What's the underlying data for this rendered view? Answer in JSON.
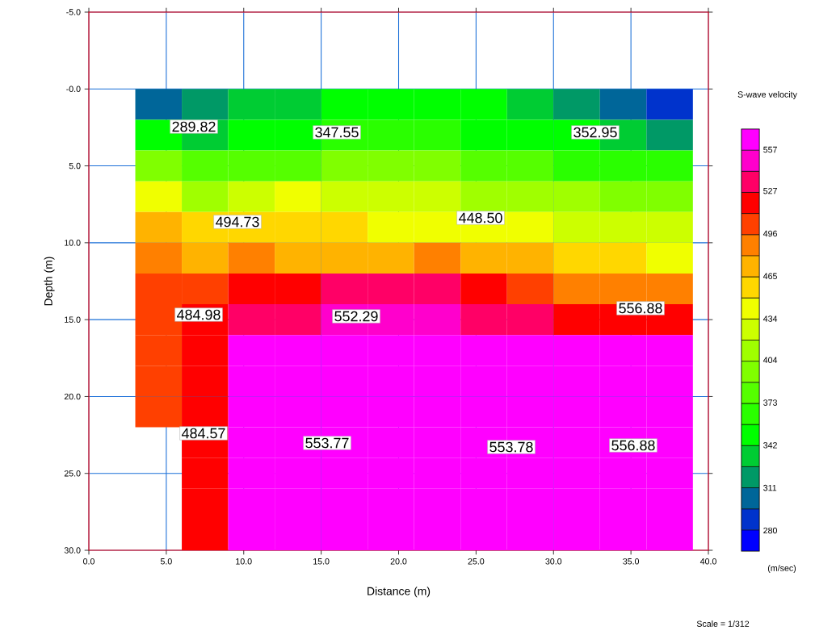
{
  "chart_data": {
    "type": "heatmap",
    "xlabel": "Distance (m)",
    "ylabel": "Depth (m)",
    "clabel": "S-wave velocity",
    "x": [
      4.5,
      7.5,
      10.5,
      13.5,
      16.5,
      19.5,
      22.5,
      25.5,
      28.5,
      31.5,
      34.5,
      37.5
    ],
    "y": [
      1,
      3,
      5,
      7,
      9,
      11,
      13,
      15,
      17,
      19,
      21,
      23,
      25,
      27,
      29
    ],
    "cells": [
      [
        303,
        319,
        334,
        334,
        350,
        350,
        350,
        350,
        334,
        319,
        303,
        288
      ],
      [
        350,
        334,
        350,
        350,
        365,
        365,
        365,
        350,
        350,
        350,
        334,
        319
      ],
      [
        396,
        380,
        380,
        380,
        396,
        396,
        396,
        380,
        380,
        365,
        365,
        365
      ],
      [
        442,
        411,
        426,
        442,
        426,
        426,
        426,
        411,
        411,
        411,
        396,
        396
      ],
      [
        473,
        457,
        457,
        457,
        457,
        442,
        442,
        442,
        442,
        426,
        426,
        426
      ],
      [
        488,
        473,
        488,
        473,
        473,
        473,
        488,
        473,
        473,
        457,
        457,
        442
      ],
      [
        504,
        504,
        519,
        519,
        534,
        534,
        534,
        519,
        504,
        488,
        488,
        488
      ],
      [
        504,
        519,
        534,
        534,
        550,
        550,
        550,
        534,
        534,
        519,
        519,
        519
      ],
      [
        504,
        519,
        565,
        565,
        565,
        565,
        565,
        565,
        565,
        565,
        565,
        565
      ],
      [
        504,
        519,
        565,
        565,
        565,
        565,
        565,
        565,
        565,
        565,
        565,
        565
      ],
      [
        504,
        519,
        565,
        565,
        565,
        565,
        565,
        565,
        565,
        565,
        565,
        565
      ],
      [
        null,
        519,
        565,
        565,
        565,
        565,
        565,
        565,
        565,
        565,
        565,
        565
      ],
      [
        null,
        519,
        565,
        565,
        565,
        565,
        565,
        565,
        565,
        565,
        565,
        565
      ],
      [
        null,
        519,
        565,
        565,
        565,
        565,
        565,
        565,
        565,
        565,
        565,
        565
      ],
      [
        null,
        519,
        565,
        565,
        565,
        565,
        565,
        565,
        565,
        565,
        565,
        565
      ]
    ],
    "clim": [
      265,
      572
    ],
    "cticks": [
      280,
      311,
      342,
      373,
      404,
      434,
      465,
      496,
      527,
      557
    ],
    "xlim": [
      0,
      40
    ],
    "ylim": [
      30,
      -5
    ],
    "xticks": [
      {
        "value": 0,
        "label": "0.0"
      },
      {
        "value": 5,
        "label": "5.0"
      },
      {
        "value": 10,
        "label": "10.0"
      },
      {
        "value": 15,
        "label": "15.0"
      },
      {
        "value": 20,
        "label": "20.0"
      },
      {
        "value": 25,
        "label": "25.0"
      },
      {
        "value": 30,
        "label": "30.0"
      },
      {
        "value": 35,
        "label": "35.0"
      },
      {
        "value": 40,
        "label": "40.0"
      }
    ],
    "yticks": [
      {
        "value": -5,
        "label": "-5.0"
      },
      {
        "value": 0,
        "label": "-0.0"
      },
      {
        "value": 5,
        "label": "5.0"
      },
      {
        "value": 10,
        "label": "10.0"
      },
      {
        "value": 15,
        "label": "15.0"
      },
      {
        "value": 20,
        "label": "20.0"
      },
      {
        "value": 25,
        "label": "25.0"
      },
      {
        "value": 30,
        "label": "30.0"
      }
    ],
    "grid": true,
    "annotations": [
      "289.82",
      "347.55",
      "352.95",
      "494.73",
      "448.50",
      "484.98",
      "552.29",
      "556.88",
      "484.57",
      "553.77",
      "553.78",
      "556.88",
      "(m/sec)",
      "Scale = 1/312"
    ]
  }
}
